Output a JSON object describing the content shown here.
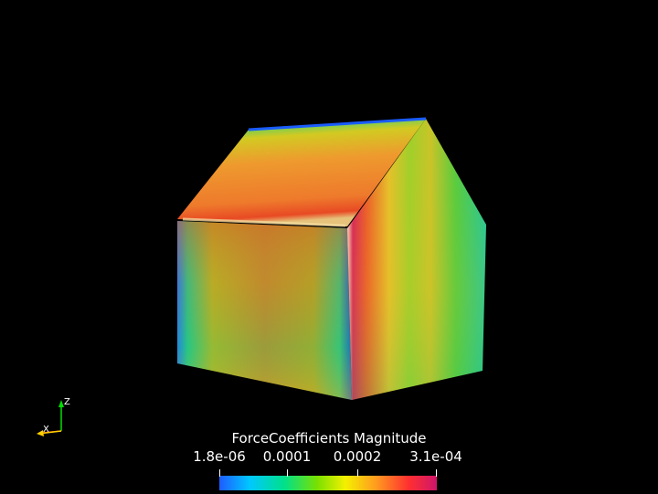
{
  "colorbar": {
    "title": "ForceCoefficients Magnitude",
    "ticks": [
      "1.8e-06",
      "0.0001",
      "0.0002",
      "3.1e-04"
    ],
    "colormap": [
      "#1e5cff",
      "#00c8ff",
      "#00e08a",
      "#7ae000",
      "#f4f000",
      "#ff9b1f",
      "#ff3030",
      "#d0156a"
    ]
  },
  "axes": {
    "z_label": "Z",
    "x_label": "X",
    "z_color": "#00e000",
    "x_color": "#ff3030",
    "y_color": "#ffd000"
  }
}
